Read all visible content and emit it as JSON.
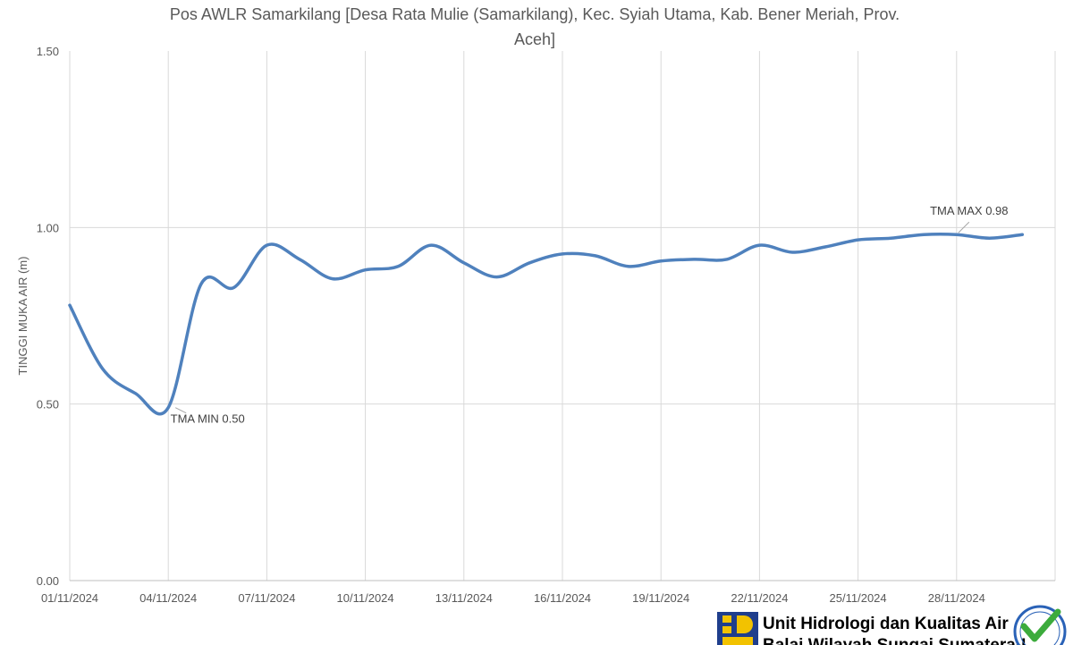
{
  "chart_data": {
    "type": "line",
    "title_line1": "Pos AWLR Samarkilang [Desa Rata Mulie (Samarkilang), Kec. Syiah Utama, Kab. Bener Meriah, Prov.",
    "title_line2": "Aceh]",
    "xlabel": "",
    "ylabel": "TINGGI MUKA AIR (m)",
    "ylim": [
      0,
      1.5
    ],
    "yticks": [
      "0.00",
      "0.50",
      "1.00",
      "1.50"
    ],
    "xlim": [
      "2024-11-01",
      "2024-12-01"
    ],
    "xticks": [
      "01/11/2024",
      "04/11/2024",
      "07/11/2024",
      "10/11/2024",
      "13/11/2024",
      "16/11/2024",
      "19/11/2024",
      "22/11/2024",
      "25/11/2024",
      "28/11/2024"
    ],
    "grid": "vertical",
    "line_color": "#4f81bd",
    "series": [
      {
        "points": [
          [
            "2024-11-01",
            0.78
          ],
          [
            "2024-11-02",
            0.6
          ],
          [
            "2024-11-03",
            0.53
          ],
          [
            "2024-11-04",
            0.49
          ],
          [
            "2024-11-05",
            0.84
          ],
          [
            "2024-11-06",
            0.83
          ],
          [
            "2024-11-07",
            0.95
          ],
          [
            "2024-11-08",
            0.91
          ],
          [
            "2024-11-09",
            0.855
          ],
          [
            "2024-11-10",
            0.88
          ],
          [
            "2024-11-11",
            0.89
          ],
          [
            "2024-11-12",
            0.95
          ],
          [
            "2024-11-13",
            0.9
          ],
          [
            "2024-11-14",
            0.86
          ],
          [
            "2024-11-15",
            0.9
          ],
          [
            "2024-11-16",
            0.925
          ],
          [
            "2024-11-17",
            0.92
          ],
          [
            "2024-11-18",
            0.89
          ],
          [
            "2024-11-19",
            0.905
          ],
          [
            "2024-11-20",
            0.91
          ],
          [
            "2024-11-21",
            0.91
          ],
          [
            "2024-11-22",
            0.95
          ],
          [
            "2024-11-23",
            0.93
          ],
          [
            "2024-11-24",
            0.945
          ],
          [
            "2024-11-25",
            0.965
          ],
          [
            "2024-11-26",
            0.97
          ],
          [
            "2024-11-27",
            0.98
          ],
          [
            "2024-11-28",
            0.98
          ],
          [
            "2024-11-29",
            0.97
          ],
          [
            "2024-11-30",
            0.98
          ]
        ]
      }
    ],
    "annotations": [
      {
        "text": "TMA MIN 0.50",
        "x": "2024-11-04",
        "y": 0.5
      },
      {
        "text": "TMA MAX 0.98",
        "x": "2024-11-28",
        "y": 0.98
      }
    ]
  },
  "footer": {
    "line1": "Unit Hidrologi dan Kualitas Air",
    "line2": "Balai Wilayah Sungai Sumatera-I",
    "logo": "pu-logo",
    "badge": "iso-certified-badge",
    "brand_blue": "#1f3e8c",
    "brand_yellow": "#f2c200",
    "badge_green": "#3cab3c"
  }
}
